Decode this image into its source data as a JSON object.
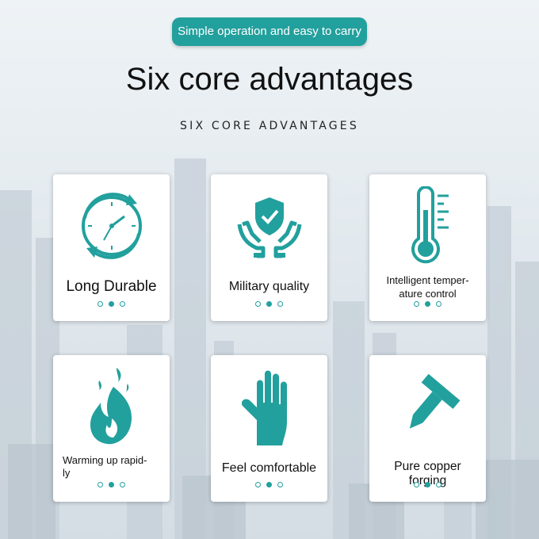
{
  "header": {
    "tagline": "Simple operation and easy to carry",
    "title": "Six core advantages",
    "subtitle": "SIX CORE ADVANTAGES"
  },
  "colors": {
    "accent": "#22a09d"
  },
  "cards": [
    {
      "icon": "clock-icon",
      "label": "Long Durable"
    },
    {
      "icon": "shield-hands-icon",
      "label": "Military quality"
    },
    {
      "icon": "thermometer-icon",
      "label": "Intelligent temper-\nature control"
    },
    {
      "icon": "flame-icon",
      "label": "Warming up rapid-\nly"
    },
    {
      "icon": "glove-icon",
      "label": "Feel comfortable"
    },
    {
      "icon": "nail-icon",
      "label": "Pure copper forging"
    }
  ]
}
